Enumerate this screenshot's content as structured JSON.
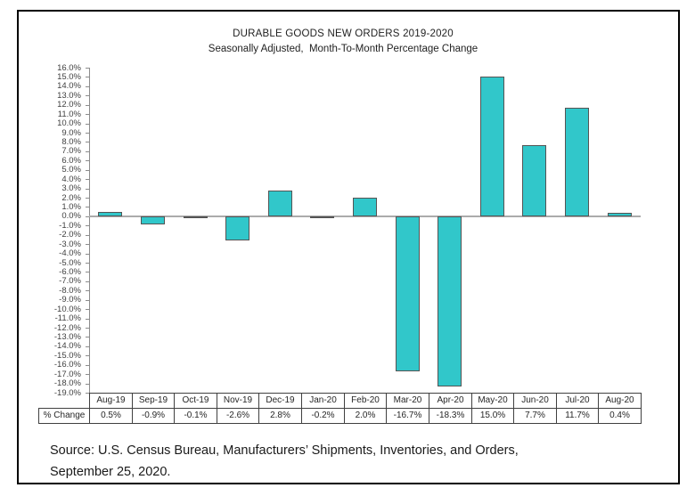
{
  "chart": {
    "title": "DURABLE GOODS NEW ORDERS 2019-2020",
    "subtitle": "Seasonally Adjusted,  Month-To-Month Percentage Change"
  },
  "chart_data": {
    "type": "bar",
    "title": "DURABLE GOODS NEW ORDERS 2019-2020",
    "subtitle": "Seasonally Adjusted,  Month-To-Month Percentage Change",
    "categories": [
      "Aug-19",
      "Sep-19",
      "Oct-19",
      "Nov-19",
      "Dec-19",
      "Jan-20",
      "Feb-20",
      "Mar-20",
      "Apr-20",
      "May-20",
      "Jun-20",
      "Jul-20",
      "Aug-20"
    ],
    "series": [
      {
        "name": "% Change",
        "values": [
          0.5,
          -0.9,
          -0.1,
          -2.6,
          2.8,
          -0.2,
          2.0,
          -16.7,
          -18.3,
          15.0,
          7.7,
          11.7,
          0.4
        ]
      }
    ],
    "xlabel": "",
    "ylabel": "",
    "ylim": [
      -19,
      16
    ],
    "ytick_step": 1,
    "ytick_suffix": "%",
    "grid": false,
    "legend_position": "none",
    "bar_color": "#31C7CA",
    "bar_border_color": "#545454",
    "data_table": {
      "row_label": "% Change",
      "values_text": [
        "0.5%",
        "-0.9%",
        "-0.1%",
        "-2.6%",
        "2.8%",
        "-0.2%",
        "2.0%",
        "-16.7%",
        "-18.3%",
        "15.0%",
        "7.7%",
        "11.7%",
        "0.4%"
      ]
    }
  },
  "source": {
    "line1": "Source: U.S. Census Bureau, Manufacturers’ Shipments, Inventories, and Orders,",
    "line2": "September 25, 2020."
  }
}
